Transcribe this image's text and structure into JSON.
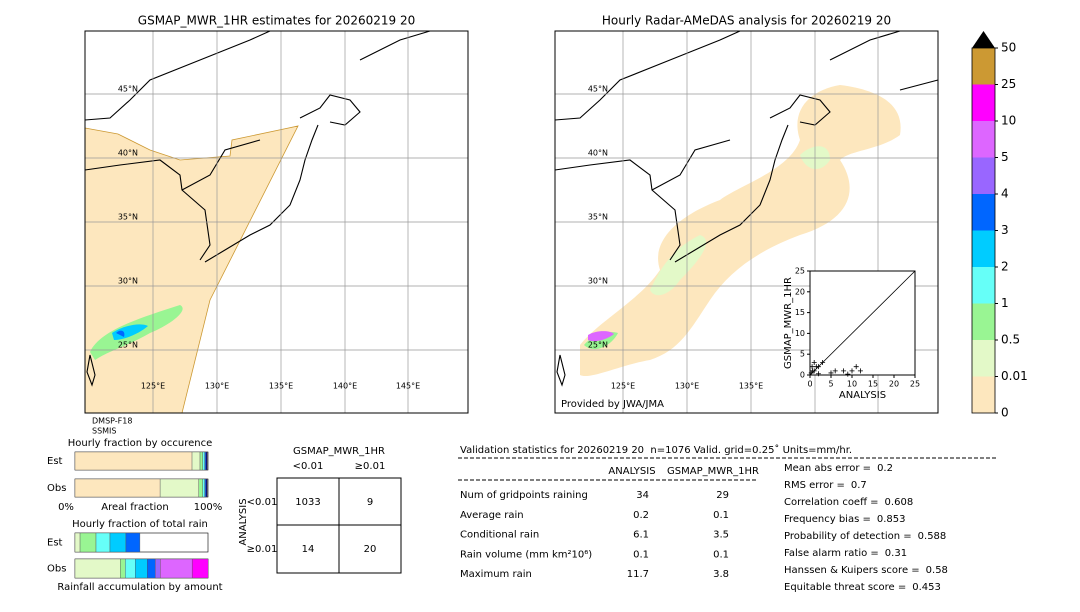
{
  "maps": [
    {
      "title": "GSMAP_MWR_1HR estimates for 20260219 20",
      "lat_labels": [
        "45°N",
        "40°N",
        "35°N",
        "30°N",
        "25°N"
      ],
      "lon_labels": [
        "125°E",
        "130°E",
        "135°E",
        "140°E",
        "145°E"
      ],
      "notes": [
        "DMSP-F18",
        "SSMIS"
      ]
    },
    {
      "title": "Hourly Radar-AMeDAS analysis for 20260219 20",
      "lat_labels": [
        "45°N",
        "40°N",
        "35°N",
        "30°N",
        "25°N"
      ],
      "lon_labels": [
        "125°E",
        "130°E",
        "135°E"
      ],
      "notes": [
        "Provided by JWA/JMA"
      ]
    }
  ],
  "chart_data": {
    "type": "scatter",
    "xlabel": "ANALYSIS",
    "ylabel": "GSMAP_MWR_1HR",
    "xlim": [
      0,
      25
    ],
    "ylim": [
      0,
      25
    ],
    "xticks": [
      0,
      5,
      10,
      15,
      20,
      25
    ],
    "yticks": [
      0,
      5,
      10,
      15,
      20,
      25
    ],
    "x": [
      0,
      0.3,
      0.6,
      1,
      1.5,
      2,
      3,
      1,
      0.5,
      2,
      5,
      6,
      8,
      9,
      10,
      11,
      12
    ],
    "y": [
      0,
      0.5,
      1,
      1,
      2,
      2,
      3,
      3,
      2,
      0.3,
      0.5,
      1,
      1,
      0.2,
      1,
      2,
      1
    ],
    "color": "#000000"
  },
  "colorbar": {
    "ticks": [
      0,
      0.01,
      0.5,
      1,
      2,
      3,
      4,
      5,
      10,
      25,
      50
    ],
    "colors": [
      "#fde7be",
      "#e3f9c8",
      "#99f593",
      "#66fff8",
      "#00ccff",
      "#0066ff",
      "#9966ff",
      "#dd66ff",
      "#ff00ff",
      "#cc9933"
    ]
  },
  "fraction_occurrence": {
    "title": "Hourly fraction by occurence",
    "rows": [
      "Est",
      "Obs"
    ],
    "axis_labels": [
      "0%",
      "Areal fraction",
      "100%"
    ],
    "segments": [
      {
        "color": "#fde7be",
        "values": [
          88,
          64
        ]
      },
      {
        "color": "#e3f9c8",
        "values": [
          6,
          29
        ]
      },
      {
        "color": "#99f593",
        "values": [
          2,
          3
        ]
      },
      {
        "color": "#66fff8",
        "values": [
          1.5,
          1.5
        ]
      },
      {
        "color": "#0066ff",
        "values": [
          1,
          1
        ]
      },
      {
        "color": "#000080",
        "values": [
          1,
          1
        ]
      }
    ]
  },
  "fraction_total": {
    "title": "Hourly fraction of total rain",
    "rows": [
      "Est",
      "Obs"
    ],
    "axis_label": "Rainfall accumulation by amount",
    "segments": [
      {
        "color": "#e3f9c8",
        "values": [
          3.8,
          34
        ]
      },
      {
        "color": "#99f593",
        "values": [
          12,
          3.8
        ]
      },
      {
        "color": "#66fff8",
        "values": [
          10.5,
          7.5
        ]
      },
      {
        "color": "#00ccff",
        "values": [
          12,
          9
        ]
      },
      {
        "color": "#0066ff",
        "values": [
          10.5,
          6
        ]
      },
      {
        "color": "#9966ff",
        "values": [
          0,
          3.8
        ]
      },
      {
        "color": "#dd66ff",
        "values": [
          0,
          24
        ]
      },
      {
        "color": "#ff00ff",
        "values": [
          0,
          12
        ]
      }
    ]
  },
  "contingency": {
    "title": "GSMAP_MWR_1HR",
    "columns": [
      "<0.01",
      "≥0.01"
    ],
    "row_axis": "ANALYSIS",
    "rows": [
      "<0.01",
      "≥0.01"
    ],
    "cells": [
      [
        1033,
        9
      ],
      [
        14,
        20
      ]
    ]
  },
  "validation": {
    "header": "Validation statistics for 20260219 20  n=1076 Valid. grid=0.25˚ Units=mm/hr.",
    "columns": [
      "ANALYSIS",
      "GSMAP_MWR_1HR"
    ],
    "rows": [
      {
        "label": "Num of gridpoints raining",
        "analysis": 34,
        "estimate": 29
      },
      {
        "label": "Average rain",
        "analysis": 0.2,
        "estimate": 0.1
      },
      {
        "label": "Conditional rain",
        "analysis": 6.1,
        "estimate": 3.5
      },
      {
        "label": "Rain volume (mm km²10⁶)",
        "analysis": 0.1,
        "estimate": 0.1
      },
      {
        "label": "Maximum rain",
        "analysis": 11.7,
        "estimate": 3.8
      }
    ],
    "scores": [
      {
        "label": "Mean abs error =",
        "value": 0.2
      },
      {
        "label": "RMS error =",
        "value": 0.7
      },
      {
        "label": "Correlation coeff =",
        "value": 0.608
      },
      {
        "label": "Frequency bias =",
        "value": 0.853
      },
      {
        "label": "Probability of detection =",
        "value": 0.588
      },
      {
        "label": "False alarm ratio =",
        "value": 0.31
      },
      {
        "label": "Hanssen & Kuipers score =",
        "value": 0.58
      },
      {
        "label": "Equitable threat score =",
        "value": 0.453
      }
    ]
  }
}
